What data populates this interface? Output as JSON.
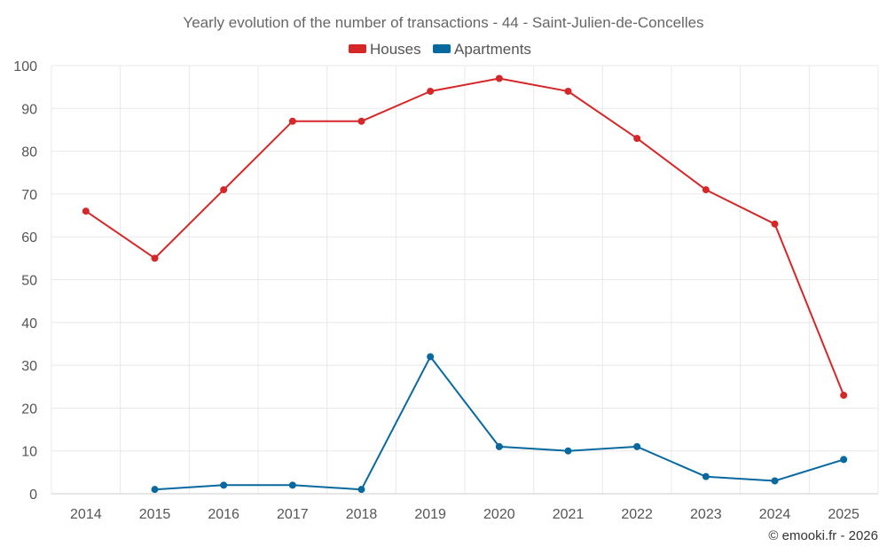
{
  "chart_data": {
    "type": "line",
    "title": "Yearly evolution of the number of transactions - 44 - Saint-Julien-de-Concelles",
    "categories": [
      "2014",
      "2015",
      "2016",
      "2017",
      "2018",
      "2019",
      "2020",
      "2021",
      "2022",
      "2023",
      "2024",
      "2025"
    ],
    "ylim": [
      0,
      100
    ],
    "yticks": [
      0,
      10,
      20,
      30,
      40,
      50,
      60,
      70,
      80,
      90,
      100
    ],
    "grid": true,
    "legend_position": "top-center",
    "series": [
      {
        "name": "Houses",
        "color": "#d62728",
        "values": [
          66,
          55,
          71,
          87,
          87,
          94,
          97,
          94,
          83,
          71,
          63,
          23
        ]
      },
      {
        "name": "Apartments",
        "color": "#08699f",
        "values": [
          null,
          1,
          2,
          2,
          1,
          32,
          11,
          10,
          11,
          4,
          3,
          8
        ]
      }
    ],
    "credit": "© emooki.fr - 2026"
  }
}
